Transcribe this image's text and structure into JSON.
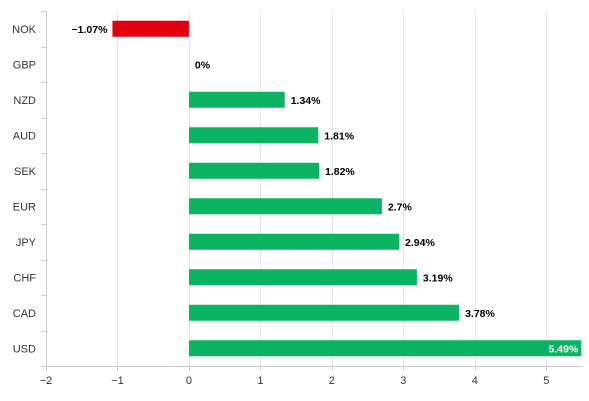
{
  "chart_data": {
    "type": "bar",
    "orientation": "horizontal",
    "categories": [
      "NOK",
      "GBP",
      "NZD",
      "AUD",
      "SEK",
      "EUR",
      "JPY",
      "CHF",
      "CAD",
      "USD"
    ],
    "values": [
      -1.07,
      0,
      1.34,
      1.81,
      1.82,
      2.7,
      2.94,
      3.19,
      3.78,
      5.49
    ],
    "data_labels": [
      "−1.07%",
      "0%",
      "1.34%",
      "1.81%",
      "1.82%",
      "2.7%",
      "2.94%",
      "3.19%",
      "3.78%",
      "5.49%"
    ],
    "xlim": [
      -2,
      5.5
    ],
    "x_ticks": [
      -2,
      -1,
      0,
      1,
      2,
      3,
      4,
      5
    ],
    "x_tick_labels": [
      "−2",
      "−1",
      "0",
      "1",
      "2",
      "3",
      "4",
      "5"
    ],
    "title": "",
    "xlabel": "",
    "ylabel": "",
    "grid": "vertical",
    "legend": "none",
    "colors": {
      "positive": "#0bb463",
      "negative": "#e2000f",
      "grid": "#e6e6e6",
      "axis": "#cccccc",
      "text": "#333333"
    }
  }
}
